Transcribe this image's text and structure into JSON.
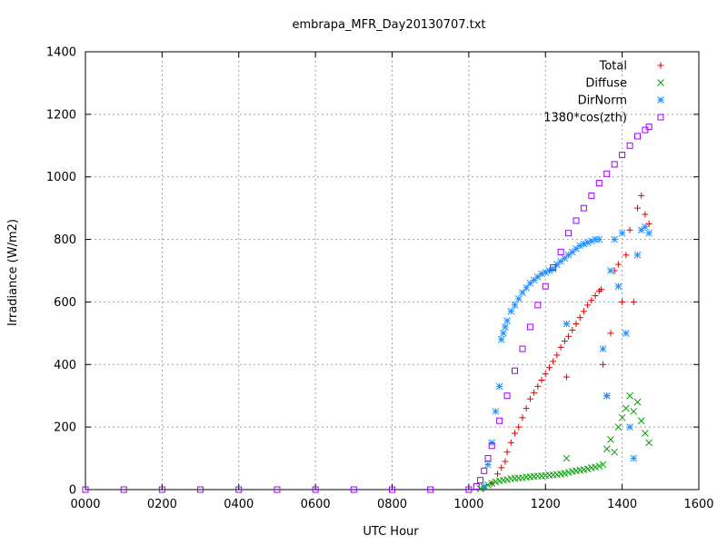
{
  "chart_data": {
    "type": "scatter",
    "title": "embrapa_MFR_Day20130707.txt",
    "xlabel": "UTC Hour",
    "ylabel": "Irradiance (W/m2)",
    "xlim": [
      0,
      1600
    ],
    "ylim": [
      0,
      1400
    ],
    "xticks": [
      0,
      200,
      400,
      600,
      800,
      1000,
      1200,
      1400,
      1600
    ],
    "xtick_labels": [
      "0000",
      "0200",
      "0400",
      "0600",
      "0800",
      "1000",
      "1200",
      "1400",
      "1600"
    ],
    "yticks": [
      0,
      200,
      400,
      600,
      800,
      1000,
      1200,
      1400
    ],
    "ytick_labels": [
      "0",
      "200",
      "400",
      "600",
      "800",
      "1000",
      "1200",
      "1400"
    ],
    "grid": true,
    "legend_position": "top-right",
    "series": [
      {
        "name": "Total",
        "marker": "plus",
        "color": "#e00000",
        "x": [
          1040,
          1060,
          1075,
          1085,
          1095,
          1100,
          1110,
          1120,
          1130,
          1140,
          1150,
          1160,
          1170,
          1180,
          1190,
          1200,
          1210,
          1220,
          1230,
          1240,
          1250,
          1255,
          1260,
          1270,
          1280,
          1290,
          1300,
          1310,
          1320,
          1330,
          1340,
          1345,
          1350,
          1360,
          1370,
          1380,
          1390,
          1400,
          1410,
          1420,
          1430,
          1440,
          1450,
          1460,
          1470
        ],
        "y": [
          5,
          20,
          50,
          70,
          90,
          120,
          150,
          180,
          200,
          230,
          260,
          290,
          310,
          330,
          350,
          370,
          390,
          410,
          430,
          455,
          475,
          360,
          490,
          510,
          530,
          550,
          570,
          590,
          605,
          620,
          635,
          640,
          400,
          300,
          500,
          700,
          720,
          600,
          750,
          830,
          600,
          900,
          940,
          880,
          850
        ]
      },
      {
        "name": "Diffuse",
        "marker": "cross",
        "color": "#00a000",
        "x": [
          1030,
          1040,
          1050,
          1060,
          1070,
          1080,
          1090,
          1100,
          1110,
          1120,
          1130,
          1140,
          1150,
          1160,
          1170,
          1180,
          1190,
          1200,
          1210,
          1220,
          1230,
          1240,
          1250,
          1255,
          1260,
          1270,
          1280,
          1290,
          1300,
          1310,
          1320,
          1330,
          1340,
          1350,
          1360,
          1370,
          1380,
          1390,
          1400,
          1410,
          1420,
          1430,
          1440,
          1450,
          1460,
          1470
        ],
        "y": [
          3,
          8,
          15,
          20,
          25,
          28,
          30,
          32,
          35,
          36,
          37,
          38,
          40,
          41,
          42,
          43,
          44,
          45,
          46,
          47,
          48,
          50,
          52,
          100,
          55,
          58,
          60,
          62,
          64,
          66,
          70,
          72,
          75,
          80,
          130,
          160,
          120,
          200,
          230,
          260,
          300,
          250,
          280,
          220,
          180,
          150
        ]
      },
      {
        "name": "DirNorm",
        "marker": "star",
        "color": "#1e90ff",
        "x": [
          1040,
          1050,
          1060,
          1070,
          1080,
          1085,
          1090,
          1095,
          1100,
          1110,
          1120,
          1130,
          1140,
          1150,
          1160,
          1170,
          1180,
          1190,
          1200,
          1210,
          1220,
          1230,
          1240,
          1250,
          1255,
          1260,
          1270,
          1280,
          1290,
          1300,
          1310,
          1320,
          1330,
          1340,
          1350,
          1360,
          1370,
          1380,
          1390,
          1400,
          1410,
          1420,
          1430,
          1440,
          1450,
          1460,
          1470
        ],
        "y": [
          10,
          80,
          150,
          250,
          330,
          480,
          500,
          520,
          540,
          570,
          590,
          610,
          630,
          645,
          660,
          670,
          680,
          690,
          695,
          700,
          705,
          720,
          730,
          740,
          530,
          750,
          760,
          770,
          780,
          785,
          790,
          795,
          800,
          800,
          450,
          300,
          700,
          800,
          650,
          820,
          500,
          200,
          100,
          750,
          830,
          840,
          820
        ]
      },
      {
        "name": "1380*cos(zth)",
        "marker": "square",
        "color": "#a000ff",
        "x": [
          0,
          100,
          200,
          300,
          400,
          500,
          600,
          700,
          800,
          900,
          1000,
          1020,
          1030,
          1040,
          1050,
          1060,
          1080,
          1100,
          1120,
          1140,
          1160,
          1180,
          1200,
          1220,
          1240,
          1260,
          1280,
          1300,
          1320,
          1340,
          1360,
          1380,
          1400,
          1420,
          1440,
          1460,
          1470
        ],
        "y": [
          0,
          0,
          0,
          0,
          0,
          0,
          0,
          0,
          0,
          0,
          0,
          10,
          30,
          60,
          100,
          140,
          220,
          300,
          380,
          450,
          520,
          590,
          650,
          710,
          760,
          820,
          860,
          900,
          940,
          980,
          1010,
          1040,
          1070,
          1100,
          1130,
          1150,
          1160
        ]
      }
    ]
  }
}
